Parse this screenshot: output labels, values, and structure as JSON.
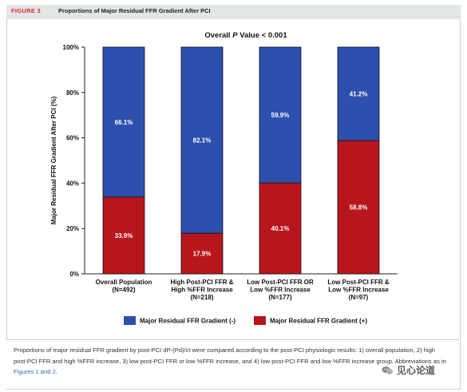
{
  "figure": {
    "label": "FIGURE 3",
    "title": "Proportions of Major Residual FFR Gradient After PCI"
  },
  "chart_data": {
    "type": "bar",
    "stacked": true,
    "title_prefix": "Overall ",
    "title_italic": "P",
    "title_suffix": " Value < 0.001",
    "ylabel": "Major Residual FFR Gradient After PCI (%)",
    "ylim": [
      0,
      100
    ],
    "yticks": [
      "0%",
      "20%",
      "40%",
      "60%",
      "80%",
      "100%"
    ],
    "grid": false,
    "legend_position": "bottom",
    "categories": [
      [
        "Overall Population",
        "(N=492)"
      ],
      [
        "High Post-PCI FFR &",
        "High %FFR Increase",
        "(N=218)"
      ],
      [
        "Low Post-PCI FFR OR",
        "Low %FFR Increase",
        "(N=177)"
      ],
      [
        "Low Post-PCI FFR &",
        "Low %FFR Increase",
        "(N=97)"
      ]
    ],
    "series": [
      {
        "name": "Major Residual FFR Gradient (+)",
        "color": "#b7161d",
        "values": [
          33.9,
          17.9,
          40.1,
          58.8
        ],
        "labels": [
          "33.9%",
          "17.9%",
          "40.1%",
          "58.8%"
        ]
      },
      {
        "name": "Major Residual FFR Gradient (-)",
        "color": "#2e4fad",
        "values": [
          66.1,
          82.1,
          59.9,
          41.2
        ],
        "labels": [
          "66.1%",
          "82.1%",
          "59.9%",
          "41.2%"
        ]
      }
    ],
    "legend_order": [
      1,
      0
    ]
  },
  "caption": {
    "text": "Proportions of major residual FFR gradient by post-PCI dP-(Pd)/ct were compared according to the post-PCI physiologic results: 1) overall population, 2) high post-PCI FFR and high %FFR increase, 3) low post-PCI FFR or low %FFR increase, and 4) low post-PCI FFR and low %FFR increase group. Abbreviations as in ",
    "link": "Figures 1 and 2",
    "end": "."
  },
  "watermark": {
    "text": "见心论道",
    "icon": "wechat-icon"
  }
}
